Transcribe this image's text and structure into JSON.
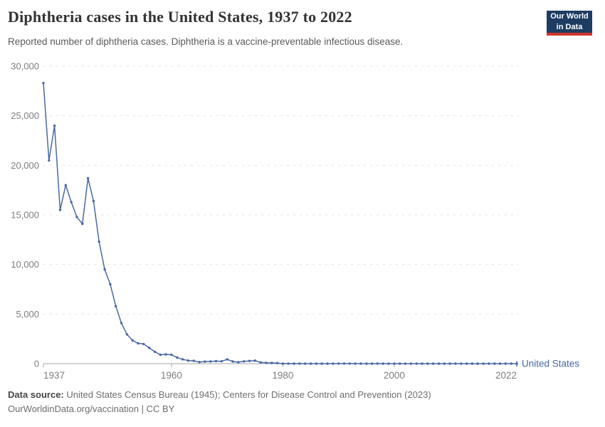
{
  "header": {
    "logo": {
      "line1": "Our World",
      "line2": "in Data",
      "bg_color": "#1d3d63",
      "bar_color": "#cf342e",
      "text_color": "#ffffff"
    }
  },
  "chart_data": {
    "type": "line",
    "title": "Diphtheria cases in the United States, 1937 to 2022",
    "subtitle": "Reported number of diphtheria cases. Diphtheria is a vaccine-preventable infectious disease.",
    "xlabel": "",
    "ylabel": "",
    "xlim": [
      1937,
      2022
    ],
    "ylim": [
      0,
      30000
    ],
    "grid": "horizontal-dashed",
    "legend_position": "end-of-line",
    "x_ticks": [
      1937,
      1960,
      1980,
      2000,
      2022
    ],
    "y_ticks": [
      {
        "value": 0,
        "label": "0"
      },
      {
        "value": 5000,
        "label": "5,000"
      },
      {
        "value": 10000,
        "label": "10,000"
      },
      {
        "value": 15000,
        "label": "15,000"
      },
      {
        "value": 20000,
        "label": "20,000"
      },
      {
        "value": 25000,
        "label": "25,000"
      },
      {
        "value": 30000,
        "label": "30,000"
      }
    ],
    "series": [
      {
        "name": "United States",
        "color": "#4868a4",
        "x": [
          1937,
          1938,
          1939,
          1940,
          1941,
          1942,
          1943,
          1944,
          1945,
          1946,
          1947,
          1948,
          1949,
          1950,
          1951,
          1952,
          1953,
          1954,
          1955,
          1956,
          1957,
          1958,
          1959,
          1960,
          1961,
          1962,
          1963,
          1964,
          1965,
          1966,
          1967,
          1968,
          1969,
          1970,
          1971,
          1972,
          1973,
          1974,
          1975,
          1976,
          1977,
          1978,
          1979,
          1980,
          1981,
          1982,
          1983,
          1984,
          1985,
          1986,
          1987,
          1988,
          1989,
          1990,
          1991,
          1992,
          1993,
          1994,
          1995,
          1996,
          1997,
          1998,
          1999,
          2000,
          2001,
          2002,
          2003,
          2004,
          2005,
          2006,
          2007,
          2008,
          2009,
          2010,
          2011,
          2012,
          2013,
          2014,
          2015,
          2016,
          2017,
          2018,
          2019,
          2020,
          2021,
          2022
        ],
        "values": [
          28300,
          20500,
          24000,
          15500,
          18000,
          16300,
          14800,
          14100,
          18700,
          16400,
          12300,
          9500,
          8000,
          5800,
          4100,
          2950,
          2350,
          2050,
          1980,
          1600,
          1200,
          900,
          930,
          900,
          620,
          440,
          310,
          290,
          160,
          210,
          220,
          260,
          240,
          435,
          215,
          150,
          230,
          270,
          310,
          130,
          85,
          75,
          60,
          3,
          5,
          2,
          5,
          1,
          3,
          0,
          3,
          2,
          3,
          4,
          5,
          4,
          0,
          2,
          0,
          2,
          4,
          1,
          1,
          1,
          2,
          1,
          1,
          0,
          0,
          0,
          0,
          0,
          0,
          0,
          0,
          1,
          0,
          1,
          0,
          0,
          0,
          1,
          2,
          1,
          0,
          1
        ]
      }
    ],
    "colors": {
      "gridline": "#e2e2e2",
      "axis": "#a6a6a6",
      "tick_text": "#7d7d7d"
    }
  },
  "footer": {
    "datasource_label": "Data source:",
    "datasource_text": " United States Census Bureau (1945); Centers for Disease Control and Prevention (2023)",
    "license_text": "OurWorldinData.org/vaccination | CC BY"
  }
}
